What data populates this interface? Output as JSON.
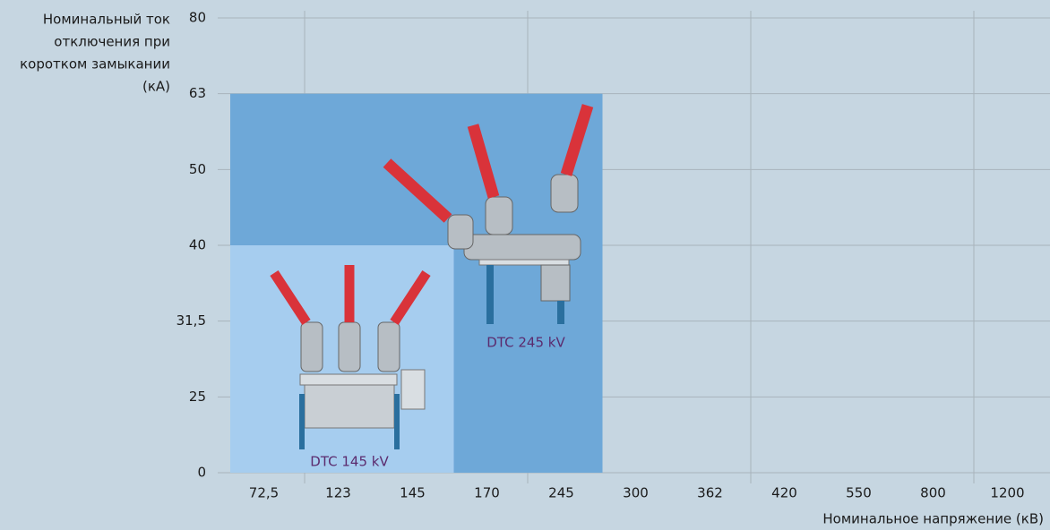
{
  "chart_data": {
    "type": "bar",
    "y_label": [
      "Номинальный ток",
      "отключения при",
      "коротком замыкании",
      "(кА)"
    ],
    "x_label": "Номинальное напряжение (кВ)",
    "categories": [
      "72,5",
      "123",
      "145",
      "170",
      "245",
      "300",
      "362",
      "420",
      "550",
      "800",
      "1200"
    ],
    "series": [
      {
        "name": "DTC 245 kV",
        "color": "#6ea8d8",
        "values": [
          63,
          63,
          63,
          63,
          63,
          null,
          null,
          null,
          null,
          null,
          null
        ]
      },
      {
        "name": "DTC 145 kV",
        "color": "#a6cdef",
        "values": [
          40,
          40,
          40,
          null,
          null,
          null,
          null,
          null,
          null,
          null,
          null
        ]
      }
    ],
    "ylim": [
      0,
      80
    ],
    "yticks": [
      0,
      25,
      {
        "value": 31.5,
        "label": "31,5"
      },
      40,
      50,
      63,
      80
    ],
    "grid": true
  }
}
